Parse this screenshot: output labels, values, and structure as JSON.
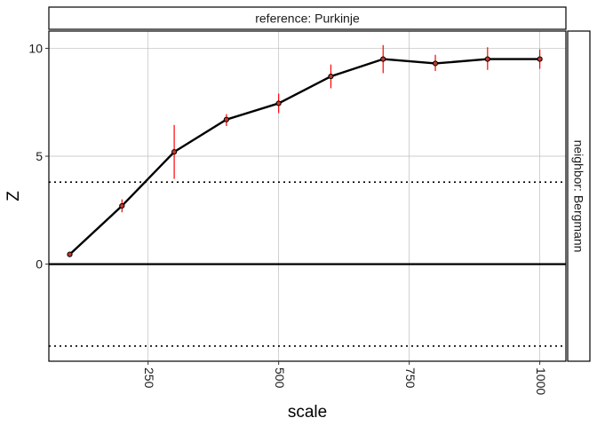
{
  "chart_data": {
    "type": "line",
    "facet": {
      "top_strip": "reference: Purkinje",
      "right_strip": "neighbor: Bergmann"
    },
    "xlabel": "scale",
    "ylabel": "Z",
    "xlim": [
      60,
      1050
    ],
    "ylim": [
      -4.5,
      10.8
    ],
    "x_ticks": [
      250,
      500,
      750,
      1000
    ],
    "y_ticks": [
      0,
      5,
      10
    ],
    "grid": true,
    "reference_lines": {
      "solid": [
        0
      ],
      "dotted": [
        3.8,
        -3.8
      ]
    },
    "colors": {
      "line": "#000000",
      "error_bar": "#ff0000",
      "point_fill": "#c0392b",
      "grid": "#bdbdbd",
      "strip_fill": "#ffffff"
    },
    "series": [
      {
        "x": [
          100,
          200,
          300,
          400,
          500,
          600,
          700,
          800,
          900,
          1000
        ],
        "y": [
          0.45,
          2.7,
          5.2,
          6.7,
          7.45,
          8.7,
          9.5,
          9.3,
          9.5,
          9.5
        ],
        "err_low": [
          0.35,
          2.4,
          3.95,
          6.4,
          7.0,
          8.15,
          8.85,
          8.95,
          9.0,
          9.05
        ],
        "err_high": [
          0.55,
          3.0,
          6.45,
          6.95,
          7.9,
          9.25,
          10.15,
          9.7,
          10.05,
          9.95
        ]
      }
    ]
  }
}
